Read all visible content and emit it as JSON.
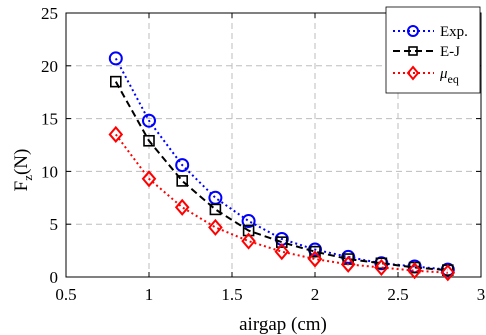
{
  "chart_data": {
    "type": "line",
    "xlabel": "airgap (cm)",
    "ylabel_main": "F",
    "ylabel_sub": "z",
    "ylabel_rest": "(N)",
    "xlim": [
      0.5,
      3
    ],
    "ylim": [
      0,
      25
    ],
    "xticks": [
      0.5,
      1,
      1.5,
      2,
      2.5,
      3
    ],
    "yticks": [
      0,
      5,
      10,
      15,
      20,
      25
    ],
    "xtick_labels": [
      "0.5",
      "1",
      "1.5",
      "2",
      "2.5",
      "3"
    ],
    "ytick_labels": [
      "0",
      "5",
      "10",
      "15",
      "20",
      "25"
    ],
    "grid": true,
    "legend_position": "top-right",
    "x": [
      0.8,
      1.0,
      1.2,
      1.4,
      1.6,
      1.8,
      2.0,
      2.2,
      2.4,
      2.6,
      2.8
    ],
    "series": [
      {
        "name": "Exp.",
        "color": "#0000ff",
        "marker": "circle",
        "line_style": "dotted",
        "values": [
          20.7,
          14.8,
          10.6,
          7.5,
          5.3,
          3.6,
          2.6,
          1.9,
          1.3,
          1.0,
          0.7
        ]
      },
      {
        "name": "E-J",
        "color": "#000000",
        "marker": "square",
        "line_style": "dashed",
        "values": [
          18.5,
          12.9,
          9.1,
          6.4,
          4.4,
          3.3,
          2.4,
          1.7,
          1.3,
          0.9,
          0.65
        ]
      },
      {
        "name_main": "μ",
        "name_sub": "eq",
        "color": "#ff0000",
        "marker": "diamond",
        "line_style": "dotted",
        "values": [
          13.5,
          9.3,
          6.6,
          4.7,
          3.4,
          2.4,
          1.7,
          1.2,
          0.9,
          0.6,
          0.4
        ]
      }
    ]
  }
}
